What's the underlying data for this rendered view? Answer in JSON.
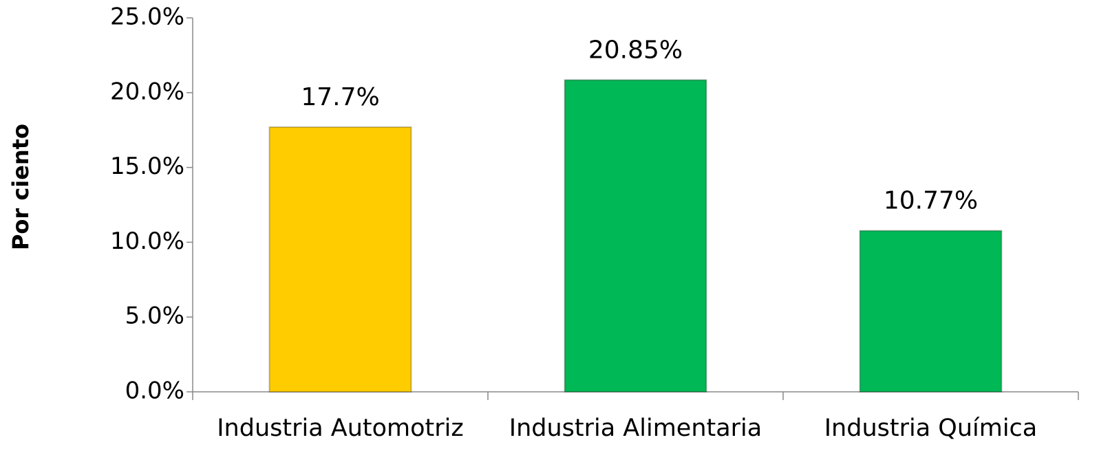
{
  "chart_data": {
    "type": "bar",
    "y_label": "Por ciento",
    "categories": [
      "Industria Automotriz",
      "Industria Alimentaria",
      "Industria Química"
    ],
    "values": [
      17.7,
      20.85,
      10.77
    ],
    "value_labels": [
      "17.7%",
      "20.85%",
      "10.77%"
    ],
    "colors": [
      "#ffcc00",
      "#00b855",
      "#00b855"
    ],
    "ylim": [
      0,
      25
    ],
    "yticks": [
      {
        "value": 0,
        "label": "0.0%"
      },
      {
        "value": 5,
        "label": "5.0%"
      },
      {
        "value": 10,
        "label": "10.0%"
      },
      {
        "value": 15,
        "label": "15.0%"
      },
      {
        "value": 20,
        "label": "20.0%"
      },
      {
        "value": 25,
        "label": "25.0%"
      }
    ],
    "grid": false
  }
}
